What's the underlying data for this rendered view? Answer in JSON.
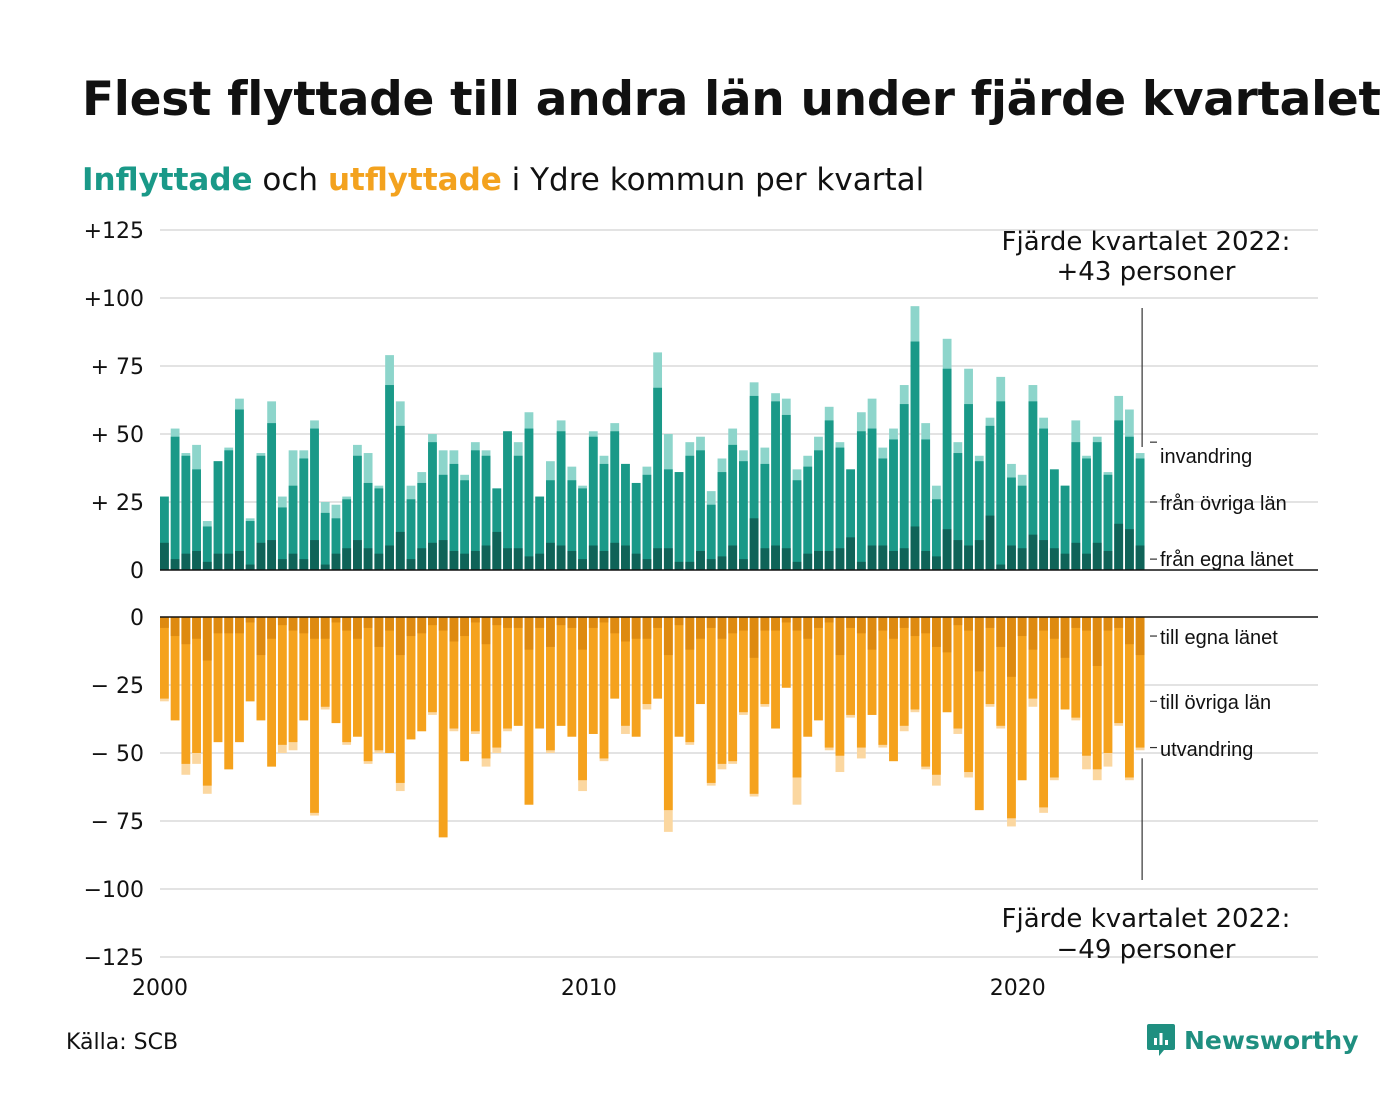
{
  "title": "Flest flyttade till andra län under fjärde kvartalet",
  "subtitle": {
    "in_word": "Inflyttade",
    "mid1": " och ",
    "out_word": "utflyttade",
    "rest": " i Ydre kommun per kvartal"
  },
  "source": "Källa: SCB",
  "brand": "Newsworthy",
  "colors": {
    "in_own": "#0f6358",
    "in_other": "#1a9988",
    "in_immig": "#8dd5cb",
    "out_own": "#de8a10",
    "out_other": "#f5a21d",
    "out_emig": "#fbd7a0",
    "title_in": "#1a9988",
    "title_out": "#f3a21e"
  },
  "chart_data": {
    "type": "bar",
    "stacked": true,
    "x_axis": {
      "min": 2000,
      "max": 2027,
      "ticks": [
        "2000",
        "2010",
        "2020"
      ]
    },
    "upper": {
      "ylim": [
        0,
        125
      ],
      "ticks": [
        {
          "v": 125,
          "label": "+125"
        },
        {
          "v": 100,
          "label": "+100"
        },
        {
          "v": 75,
          "label": "+ 75"
        },
        {
          "v": 50,
          "label": "+ 50"
        },
        {
          "v": 25,
          "label": "+ 25"
        },
        {
          "v": 0,
          "label": "0"
        }
      ],
      "series_labels": [
        "invandring",
        "från övriga län",
        "från egna länet"
      ]
    },
    "lower": {
      "ylim": [
        -125,
        0
      ],
      "ticks": [
        {
          "v": 0,
          "label": "0"
        },
        {
          "v": -25,
          "label": "− 25"
        },
        {
          "v": -50,
          "label": "− 50"
        },
        {
          "v": -75,
          "label": "− 75"
        },
        {
          "v": -100,
          "label": "−100"
        },
        {
          "v": -125,
          "label": "−125"
        }
      ],
      "series_labels": [
        "till egna länet",
        "till övriga län",
        "utvandring"
      ]
    },
    "quarters": [
      "2000 Q1",
      "2000 Q2",
      "2000 Q3",
      "2000 Q4",
      "2001 Q1",
      "2001 Q2",
      "2001 Q3",
      "2001 Q4",
      "2002 Q1",
      "2002 Q2",
      "2002 Q3",
      "2002 Q4",
      "2003 Q1",
      "2003 Q2",
      "2003 Q3",
      "2003 Q4",
      "2004 Q1",
      "2004 Q2",
      "2004 Q3",
      "2004 Q4",
      "2005 Q1",
      "2005 Q2",
      "2005 Q3",
      "2005 Q4",
      "2006 Q1",
      "2006 Q2",
      "2006 Q3",
      "2006 Q4",
      "2007 Q1",
      "2007 Q2",
      "2007 Q3",
      "2007 Q4",
      "2008 Q1",
      "2008 Q2",
      "2008 Q3",
      "2008 Q4",
      "2009 Q1",
      "2009 Q2",
      "2009 Q3",
      "2009 Q4",
      "2010 Q1",
      "2010 Q2",
      "2010 Q3",
      "2010 Q4",
      "2011 Q1",
      "2011 Q2",
      "2011 Q3",
      "2011 Q4",
      "2012 Q1",
      "2012 Q2",
      "2012 Q3",
      "2012 Q4",
      "2013 Q1",
      "2013 Q2",
      "2013 Q3",
      "2013 Q4",
      "2014 Q1",
      "2014 Q2",
      "2014 Q3",
      "2014 Q4",
      "2015 Q1",
      "2015 Q2",
      "2015 Q3",
      "2015 Q4",
      "2016 Q1",
      "2016 Q2",
      "2016 Q3",
      "2016 Q4",
      "2017 Q1",
      "2017 Q2",
      "2017 Q3",
      "2017 Q4",
      "2018 Q1",
      "2018 Q2",
      "2018 Q3",
      "2018 Q4",
      "2019 Q1",
      "2019 Q2",
      "2019 Q3",
      "2019 Q4",
      "2020 Q1",
      "2020 Q2",
      "2020 Q3",
      "2020 Q4",
      "2021 Q1",
      "2021 Q2",
      "2021 Q3",
      "2021 Q4",
      "2022 Q1",
      "2022 Q2",
      "2022 Q3",
      "2022 Q4"
    ],
    "inflow_total": [
      27,
      52,
      43,
      46,
      18,
      40,
      45,
      63,
      19,
      43,
      62,
      27,
      44,
      44,
      55,
      25,
      24,
      27,
      46,
      43,
      31,
      79,
      62,
      31,
      36,
      50,
      44,
      44,
      35,
      47,
      44,
      30,
      51,
      47,
      58,
      27,
      40,
      55,
      38,
      31,
      51,
      42,
      54,
      39,
      32,
      38,
      80,
      50,
      36,
      47,
      49,
      29,
      41,
      52,
      44,
      69,
      45,
      65,
      63,
      37,
      42,
      49,
      60,
      47,
      37,
      58,
      63,
      45,
      52,
      68,
      97,
      54,
      31,
      85,
      47,
      74,
      42,
      56,
      71,
      39,
      35,
      68,
      56,
      37,
      31,
      55,
      42,
      49,
      36,
      64,
      59,
      43
    ],
    "inflow_own": [
      10,
      4,
      6,
      7,
      3,
      6,
      6,
      7,
      2,
      10,
      11,
      4,
      6,
      4,
      11,
      2,
      6,
      8,
      11,
      8,
      6,
      9,
      14,
      4,
      8,
      10,
      11,
      7,
      6,
      7,
      9,
      14,
      8,
      8,
      5,
      6,
      10,
      9,
      7,
      4,
      9,
      7,
      10,
      9,
      6,
      4,
      8,
      8,
      3,
      3,
      7,
      4,
      5,
      9,
      4,
      19,
      8,
      9,
      8,
      3,
      6,
      7,
      7,
      8,
      12,
      3,
      9,
      9,
      7,
      8,
      16,
      7,
      5,
      15,
      11,
      9,
      11,
      20,
      2,
      9,
      8,
      13,
      11,
      8,
      6,
      10,
      6,
      10,
      7,
      17,
      15,
      9
    ],
    "inflow_other": [
      27,
      49,
      42,
      37,
      16,
      40,
      44,
      59,
      18,
      42,
      54,
      23,
      31,
      41,
      52,
      21,
      19,
      26,
      42,
      32,
      30,
      68,
      53,
      26,
      32,
      47,
      35,
      39,
      33,
      44,
      42,
      30,
      51,
      42,
      52,
      27,
      33,
      51,
      33,
      30,
      49,
      39,
      51,
      39,
      32,
      35,
      67,
      37,
      36,
      42,
      44,
      24,
      36,
      46,
      40,
      64,
      39,
      62,
      57,
      33,
      38,
      44,
      55,
      45,
      37,
      51,
      52,
      41,
      48,
      61,
      84,
      48,
      26,
      74,
      43,
      61,
      40,
      53,
      62,
      34,
      31,
      62,
      52,
      37,
      31,
      47,
      41,
      47,
      35,
      55,
      49,
      41
    ],
    "outflow_total": [
      31,
      38,
      58,
      54,
      65,
      46,
      56,
      46,
      31,
      38,
      55,
      50,
      49,
      38,
      73,
      34,
      39,
      47,
      44,
      54,
      50,
      50,
      64,
      45,
      42,
      36,
      81,
      42,
      53,
      43,
      55,
      50,
      42,
      40,
      69,
      41,
      50,
      40,
      44,
      64,
      43,
      53,
      30,
      43,
      44,
      34,
      30,
      79,
      44,
      47,
      32,
      62,
      56,
      54,
      36,
      66,
      33,
      41,
      26,
      69,
      44,
      38,
      49,
      57,
      37,
      52,
      36,
      48,
      53,
      42,
      35,
      56,
      62,
      35,
      43,
      59,
      71,
      33,
      41,
      77,
      60,
      33,
      72,
      60,
      34,
      38,
      56,
      60,
      55,
      40,
      60,
      49
    ],
    "outflow_own": [
      4,
      7,
      10,
      8,
      16,
      6,
      6,
      6,
      2,
      14,
      8,
      3,
      5,
      6,
      8,
      8,
      2,
      5,
      8,
      4,
      11,
      5,
      14,
      7,
      6,
      3,
      5,
      9,
      7,
      2,
      10,
      3,
      4,
      4,
      12,
      4,
      11,
      3,
      4,
      12,
      4,
      2,
      6,
      9,
      8,
      8,
      4,
      14,
      3,
      12,
      8,
      4,
      8,
      6,
      5,
      15,
      5,
      5,
      2,
      5,
      8,
      4,
      2,
      14,
      4,
      6,
      12,
      5,
      8,
      4,
      7,
      6,
      11,
      13,
      3,
      5,
      20,
      4,
      11,
      22,
      7,
      12,
      5,
      8,
      15,
      4,
      5,
      18,
      5,
      4,
      10,
      14
    ],
    "outflow_other": [
      30,
      38,
      54,
      50,
      62,
      46,
      56,
      46,
      31,
      38,
      55,
      47,
      46,
      38,
      72,
      33,
      39,
      46,
      44,
      53,
      49,
      50,
      61,
      45,
      42,
      35,
      81,
      41,
      53,
      42,
      52,
      48,
      41,
      40,
      69,
      41,
      49,
      40,
      44,
      60,
      43,
      52,
      30,
      40,
      44,
      32,
      30,
      71,
      44,
      46,
      32,
      61,
      54,
      53,
      35,
      65,
      32,
      41,
      26,
      59,
      44,
      38,
      48,
      51,
      36,
      48,
      36,
      47,
      53,
      40,
      34,
      55,
      58,
      35,
      41,
      57,
      71,
      32,
      40,
      74,
      60,
      30,
      70,
      59,
      34,
      37,
      51,
      56,
      50,
      39,
      59,
      48
    ],
    "annotations": [
      {
        "line1": "Fjärde kvartalet 2022:",
        "line2": "+43 personer"
      },
      {
        "line1": "Fjärde kvartalet 2022:",
        "line2": "−49 personer"
      }
    ]
  }
}
